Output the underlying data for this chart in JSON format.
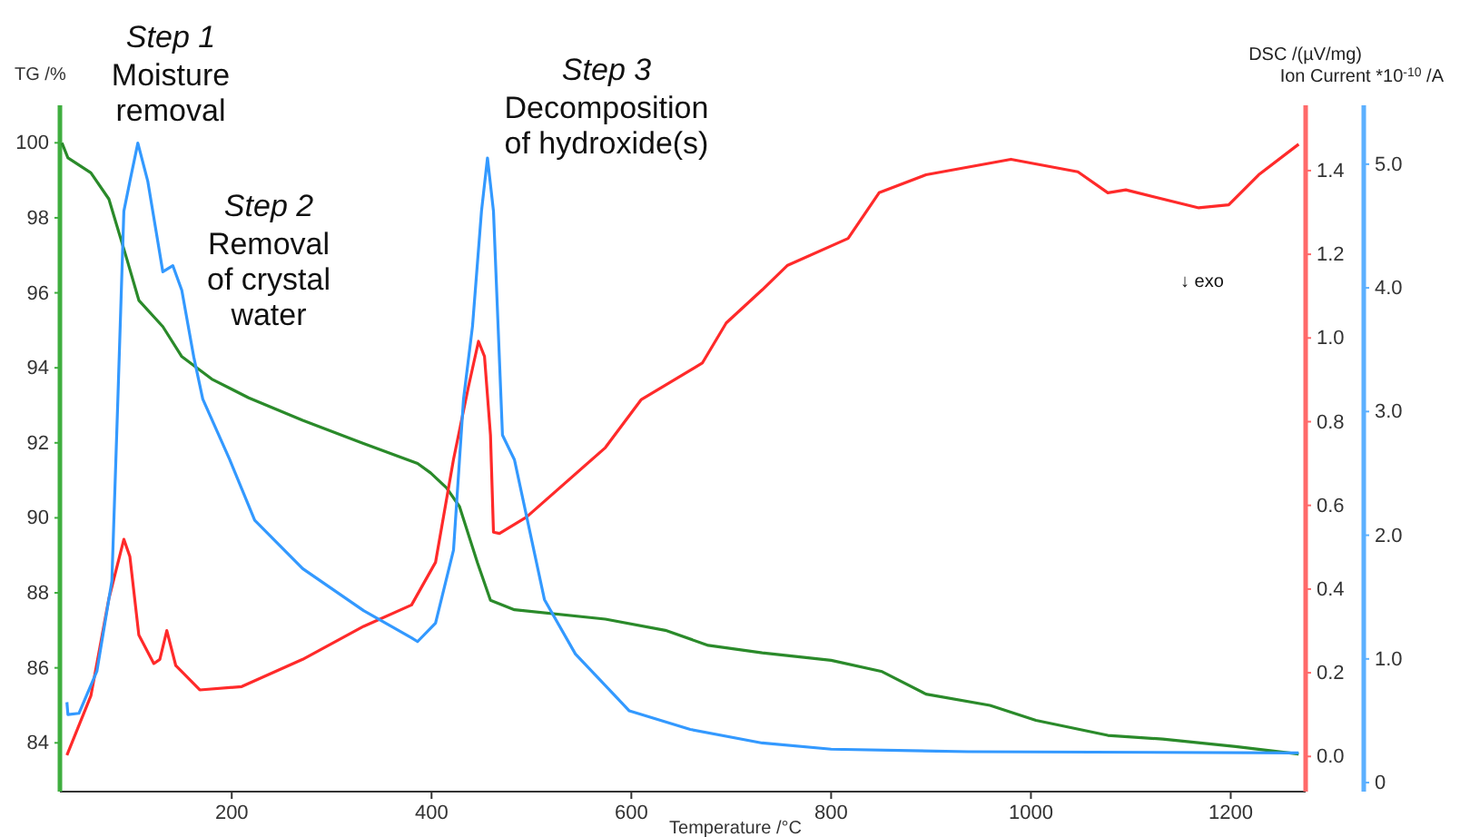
{
  "chart_data": {
    "type": "line",
    "xlabel": "Temperature /°C",
    "ylabel": "TG /%",
    "y2label": "DSC /(µV/mg)",
    "y3label": "Ion Current *10$^{-10}$ /A",
    "xlim": [
      28,
      1275
    ],
    "xticks": [
      200,
      400,
      600,
      800,
      1000,
      1200
    ],
    "ylim": [
      82.7,
      101
    ],
    "yticks": [
      84,
      86,
      88,
      90,
      92,
      94,
      96,
      98,
      100
    ],
    "y2lim": [
      -0.084,
      1.556
    ],
    "y2ticks": [
      {
        "value": 0,
        "label": "0.0"
      },
      {
        "value": 0.2,
        "label": "0.2"
      },
      {
        "value": 0.4,
        "label": "0.4"
      },
      {
        "value": 0.6,
        "label": "0.6"
      },
      {
        "value": 0.8,
        "label": "0.8"
      },
      {
        "value": 1,
        "label": "1.0"
      },
      {
        "value": 1.2,
        "label": "1.2"
      },
      {
        "value": 1.4,
        "label": "1.4"
      }
    ],
    "y3lim": [
      -0.073,
      5.476
    ],
    "y3ticks": [
      0,
      {
        "value": 1,
        "label": "1.0"
      },
      {
        "value": 2,
        "label": "2.0"
      },
      {
        "value": 3,
        "label": "3.0"
      },
      {
        "value": 4,
        "label": "4.0"
      },
      {
        "value": 5,
        "label": "5.0"
      }
    ],
    "line_style": "solid",
    "marker": "none",
    "annotations": [
      "Step 1",
      "Moisture\nremoval",
      "Step 2",
      "Removal\nof crystal\nwater",
      "Step 3",
      "Decomposition\nof hydroxide(s)",
      "↓ exo"
    ],
    "series": [
      {
        "color": "#2a8a2a",
        "axis": "y",
        "x": [
          30,
          36,
          59,
          77,
          95,
          107,
          131,
          150,
          180,
          217,
          271,
          330,
          386,
          399,
          415,
          428,
          446,
          459,
          483,
          574,
          634,
          677,
          731,
          800,
          851,
          895,
          959,
          1005,
          1077,
          1132,
          1205,
          1268
        ],
        "values": [
          100,
          99.6,
          99.2,
          98.5,
          96.9,
          95.8,
          95.1,
          94.3,
          93.7,
          93.2,
          92.6,
          92.0,
          91.45,
          91.2,
          90.8,
          90.3,
          88.8,
          87.8,
          87.55,
          87.3,
          87.0,
          86.6,
          86.4,
          86.2,
          85.9,
          85.3,
          85.0,
          84.6,
          84.2,
          84.1,
          83.9,
          83.7
        ]
      },
      {
        "color": "#ff2a2a",
        "axis": "y2",
        "x": [
          35,
          59,
          77,
          92,
          98,
          107,
          122,
          128,
          135,
          144,
          168,
          210,
          271,
          332,
          380,
          404,
          422,
          437,
          447,
          453,
          459,
          462,
          468,
          495,
          574,
          610,
          671,
          695,
          731,
          756,
          817,
          848,
          895,
          980,
          1047,
          1077,
          1095,
          1168,
          1198,
          1228,
          1268
        ],
        "values": [
          0.003,
          0.145,
          0.377,
          0.519,
          0.478,
          0.29,
          0.222,
          0.232,
          0.301,
          0.217,
          0.159,
          0.167,
          0.232,
          0.311,
          0.362,
          0.464,
          0.71,
          0.884,
          0.992,
          0.956,
          0.768,
          0.536,
          0.533,
          0.572,
          0.738,
          0.853,
          0.94,
          1.036,
          1.115,
          1.173,
          1.238,
          1.347,
          1.39,
          1.427,
          1.397,
          1.347,
          1.354,
          1.311,
          1.318,
          1.39,
          1.463
        ]
      },
      {
        "color": "#3399ff",
        "axis": "y3",
        "x": [
          35,
          36,
          47,
          65,
          80,
          86,
          92,
          98,
          106,
          116,
          131,
          141,
          150,
          162,
          171,
          198,
          223,
          271,
          332,
          380,
          386,
          404,
          422,
          432,
          441,
          450,
          456,
          462,
          471,
          483,
          513,
          544,
          598,
          659,
          731,
          800,
          937,
          1268
        ],
        "values": [
          0.65,
          0.55,
          0.56,
          0.9,
          1.63,
          3.1,
          4.62,
          4.86,
          5.17,
          4.86,
          4.13,
          4.18,
          3.98,
          3.44,
          3.1,
          2.61,
          2.12,
          1.73,
          1.39,
          1.17,
          1.14,
          1.29,
          1.88,
          3.1,
          3.69,
          4.62,
          5.05,
          4.62,
          2.81,
          2.61,
          1.48,
          1.04,
          0.58,
          0.43,
          0.32,
          0.27,
          0.25,
          0.24
        ]
      }
    ]
  }
}
